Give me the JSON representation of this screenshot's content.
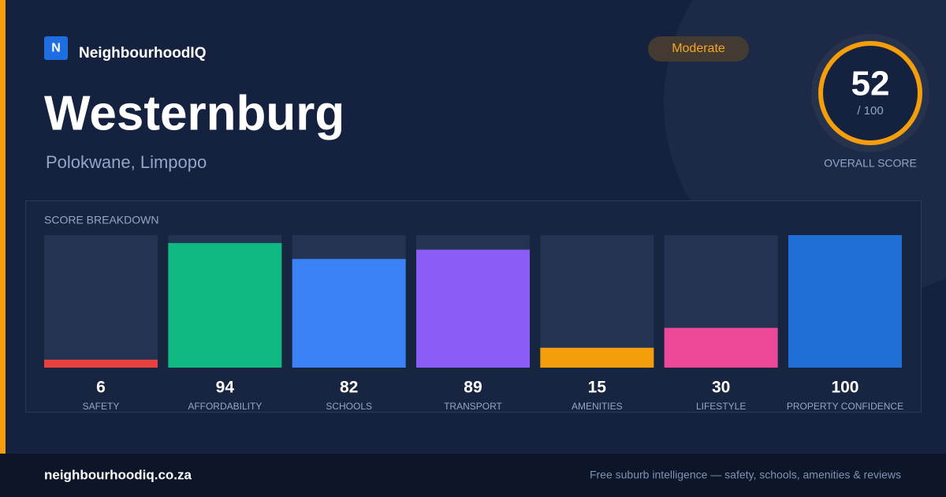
{
  "brand": {
    "logo_letter": "N",
    "name": "NeighbourhoodIQ"
  },
  "header": {
    "title": "Westernburg",
    "subtitle": "Polokwane, Limpopo",
    "badge": "Moderate"
  },
  "overall": {
    "score": 52,
    "out_of": "/ 100",
    "label": "OVERALL SCORE"
  },
  "chart_data": {
    "type": "bar",
    "title": "SCORE BREAKDOWN",
    "categories": [
      "SAFETY",
      "AFFORDABILITY",
      "SCHOOLS",
      "TRANSPORT",
      "AMENITIES",
      "LIFESTYLE",
      "PROPERTY CONFIDENCE"
    ],
    "values": [
      6,
      94,
      82,
      89,
      15,
      30,
      100
    ],
    "colors": [
      "#e5413f",
      "#10b981",
      "#3b82f6",
      "#8b5cf6",
      "#f59e0b",
      "#ec4899",
      "#1f6fd6"
    ],
    "ylim": [
      0,
      100
    ]
  },
  "footer": {
    "site": "neighbourhoodiq.co.za",
    "tagline": "Free suburb intelligence — safety, schools, amenities & reviews"
  }
}
